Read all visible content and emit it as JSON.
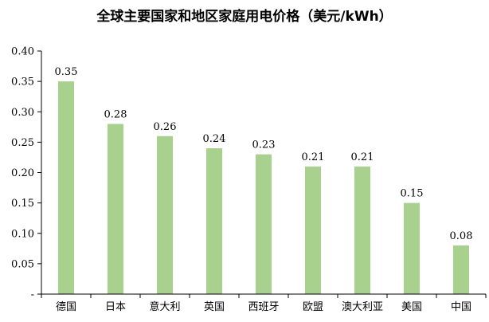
{
  "chart_data": {
    "type": "bar",
    "title": "全球主要国家和地区家庭用电价格（美元/kWh）",
    "categories": [
      "德国",
      "日本",
      "意大利",
      "英国",
      "西班牙",
      "欧盟",
      "澳大利亚",
      "美国",
      "中国"
    ],
    "values": [
      0.35,
      0.28,
      0.26,
      0.24,
      0.23,
      0.21,
      0.21,
      0.15,
      0.08
    ],
    "data_labels": [
      "0.35",
      "0.28",
      "0.26",
      "0.24",
      "0.23",
      "0.21",
      "0.21",
      "0.15",
      "0.08"
    ],
    "y_ticks": [
      0,
      0.05,
      0.1,
      0.15,
      0.2,
      0.25,
      0.3,
      0.35,
      0.4
    ],
    "y_tick_labels": [
      "-",
      "0.05",
      "0.10",
      "0.15",
      "0.20",
      "0.25",
      "0.30",
      "0.35",
      "0.40"
    ],
    "ylim": [
      0,
      0.4
    ],
    "grid": false,
    "legend": "none",
    "bar_color": "#a9d18e",
    "axis_color": "#000000"
  }
}
